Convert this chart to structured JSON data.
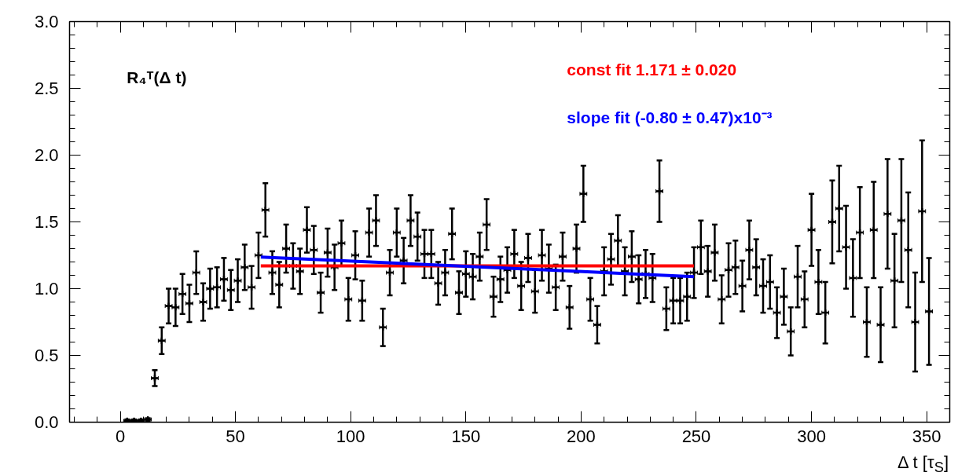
{
  "chart_data": {
    "type": "scatter",
    "xlabel": "Δ t [τ$_{S}$]",
    "annotations": [
      "R₄ᵀ(Δ t)"
    ],
    "xlim": [
      -22,
      360
    ],
    "ylim": [
      0,
      3
    ],
    "xticks": [
      0,
      50,
      100,
      150,
      200,
      250,
      300,
      350
    ],
    "yticks": [
      {
        "value": 0,
        "label": "0.0"
      },
      {
        "value": 0.5,
        "label": "0.5"
      },
      {
        "value": 1,
        "label": "1.0"
      },
      {
        "value": 1.5,
        "label": "1.5"
      },
      {
        "value": 2,
        "label": "2.0"
      },
      {
        "value": 2.5,
        "label": "2.5"
      },
      {
        "value": 3,
        "label": "3.0"
      }
    ],
    "grid": false,
    "legend": false,
    "series": [
      {
        "color": "#000000",
        "marker": "cross",
        "x": [
          3,
          6,
          9,
          12,
          15,
          18,
          21,
          24,
          27,
          30,
          33,
          36,
          39,
          42,
          45,
          48,
          51,
          54,
          57,
          60,
          63,
          66,
          69,
          72,
          75,
          78,
          81,
          84,
          87,
          90,
          93,
          96,
          99,
          102,
          105,
          108,
          111,
          114,
          117,
          120,
          123,
          126,
          129,
          132,
          135,
          138,
          141,
          144,
          147,
          150,
          153,
          156,
          159,
          162,
          165,
          168,
          171,
          174,
          177,
          180,
          183,
          186,
          189,
          192,
          195,
          198,
          201,
          204,
          207,
          210,
          213,
          216,
          219,
          222,
          225,
          228,
          231,
          234,
          237,
          240,
          243,
          246,
          249,
          252,
          255,
          258,
          261,
          264,
          267,
          270,
          273,
          276,
          279,
          282,
          285,
          288,
          291,
          294,
          297,
          300,
          303,
          306,
          309,
          312,
          315,
          318,
          321,
          324,
          327,
          330,
          333,
          336,
          339,
          342,
          345,
          348,
          351
        ],
        "values": [
          0.01,
          0.01,
          0.01,
          0.02,
          0.33,
          0.61,
          0.87,
          0.86,
          0.96,
          0.89,
          1.12,
          0.9,
          1.0,
          1.01,
          1.07,
          0.99,
          1.06,
          1.16,
          1.01,
          1.25,
          1.59,
          1.12,
          1.03,
          1.3,
          1.17,
          1.13,
          1.44,
          1.29,
          0.97,
          1.27,
          1.16,
          1.34,
          0.92,
          1.25,
          0.91,
          1.42,
          1.51,
          0.71,
          1.12,
          1.42,
          1.21,
          1.51,
          1.39,
          1.26,
          1.26,
          1.04,
          1.12,
          1.41,
          0.97,
          1.11,
          1.09,
          1.24,
          1.48,
          0.94,
          1.07,
          1.14,
          1.26,
          1.02,
          1.23,
          0.98,
          1.25,
          1.15,
          1.01,
          1.24,
          0.86,
          1.3,
          1.71,
          0.92,
          0.73,
          1.13,
          1.22,
          1.36,
          1.13,
          1.24,
          1.07,
          1.11,
          1.08,
          1.73,
          0.85,
          0.91,
          0.91,
          0.94,
          1.12,
          1.31,
          1.13,
          1.27,
          0.92,
          1.14,
          1.16,
          1.02,
          1.29,
          1.16,
          1.02,
          1.05,
          0.82,
          0.94,
          0.68,
          1.09,
          0.92,
          1.44,
          1.05,
          0.82,
          1.5,
          1.6,
          1.31,
          1.08,
          1.42,
          0.75,
          1.44,
          0.73,
          1.56,
          1.06,
          1.51,
          1.29,
          0.75,
          1.58,
          0.83
        ],
        "errors": [
          0.01,
          0.01,
          0.01,
          0.01,
          0.06,
          0.1,
          0.13,
          0.14,
          0.15,
          0.14,
          0.16,
          0.14,
          0.15,
          0.15,
          0.16,
          0.15,
          0.16,
          0.17,
          0.16,
          0.17,
          0.2,
          0.16,
          0.17,
          0.18,
          0.17,
          0.17,
          0.17,
          0.18,
          0.15,
          0.18,
          0.17,
          0.17,
          0.16,
          0.18,
          0.15,
          0.18,
          0.19,
          0.14,
          0.17,
          0.18,
          0.17,
          0.19,
          0.18,
          0.18,
          0.18,
          0.16,
          0.17,
          0.19,
          0.16,
          0.17,
          0.17,
          0.18,
          0.19,
          0.15,
          0.17,
          0.17,
          0.18,
          0.18,
          0.18,
          0.16,
          0.19,
          0.18,
          0.17,
          0.18,
          0.16,
          0.18,
          0.21,
          0.16,
          0.14,
          0.18,
          0.19,
          0.19,
          0.18,
          0.19,
          0.18,
          0.18,
          0.18,
          0.23,
          0.16,
          0.17,
          0.17,
          0.18,
          0.19,
          0.2,
          0.19,
          0.21,
          0.18,
          0.2,
          0.2,
          0.19,
          0.22,
          0.21,
          0.2,
          0.2,
          0.19,
          0.21,
          0.18,
          0.23,
          0.21,
          0.27,
          0.24,
          0.23,
          0.31,
          0.32,
          0.31,
          0.29,
          0.34,
          0.26,
          0.36,
          0.28,
          0.41,
          0.35,
          0.46,
          0.43,
          0.37,
          0.53,
          0.4
        ],
        "xerrors": [
          1.5,
          1.5,
          1.5,
          1.5,
          1.5,
          1.5,
          1.5,
          1.5,
          1.5,
          1.5,
          1.5,
          1.5,
          1.5,
          1.5,
          1.5,
          1.5,
          1.5,
          1.5,
          1.5,
          1.5,
          1.5,
          1.5,
          1.5,
          1.5,
          1.5,
          1.5,
          1.5,
          1.5,
          1.5,
          1.5,
          1.5,
          1.5,
          1.5,
          1.5,
          1.5,
          1.5,
          1.5,
          1.5,
          1.5,
          1.5,
          1.5,
          1.5,
          1.5,
          1.5,
          1.5,
          1.5,
          1.5,
          1.5,
          1.5,
          1.5,
          1.5,
          1.5,
          1.5,
          1.5,
          1.5,
          1.5,
          1.5,
          1.5,
          1.5,
          1.5,
          1.5,
          1.5,
          1.5,
          1.5,
          1.5,
          1.5,
          1.5,
          1.5,
          1.5,
          1.5,
          1.5,
          1.5,
          1.5,
          1.5,
          1.5,
          1.5,
          1.5,
          1.5,
          1.5,
          1.5,
          1.5,
          1.5,
          1.5,
          1.5,
          1.5,
          1.5,
          1.5,
          1.5,
          1.5,
          1.5,
          1.5,
          1.5,
          1.5,
          1.5,
          1.5,
          1.5,
          1.5,
          1.5,
          1.5,
          1.5,
          1.5,
          1.5,
          1.5,
          1.5,
          1.5,
          1.5,
          1.5,
          1.5,
          1.5,
          1.5,
          1.5,
          1.5,
          1.5,
          1.5,
          1.5,
          1.5,
          1.5
        ]
      },
      {
        "type": "line",
        "name": "const fit  1.171 ± 0.020",
        "color": "#ff0000",
        "x": [
          61,
          249
        ],
        "values": [
          1.171,
          1.171
        ]
      },
      {
        "type": "line",
        "name": "slope fit (-0.80 ± 0.47)x10⁻³",
        "color": "#0000ff",
        "x": [
          61,
          249
        ],
        "values": [
          1.237,
          1.09
        ]
      }
    ]
  }
}
